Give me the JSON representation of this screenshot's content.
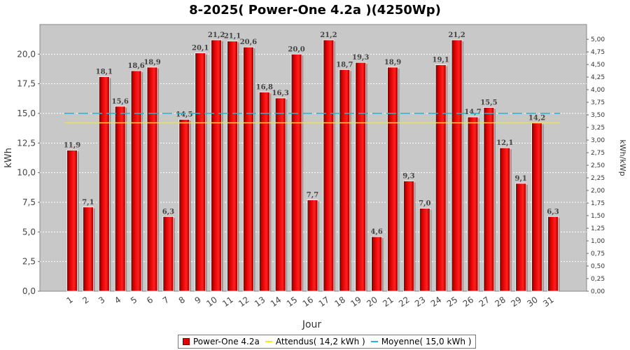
{
  "chart_data": {
    "type": "bar",
    "title": "8-2025( Power-One 4.2a )(4250Wp)",
    "xlabel": "Jour",
    "ylabel": "kWh",
    "ylabel_right": "kWh/kWp",
    "ylim": [
      0,
      22.5
    ],
    "ylim_right": [
      0,
      5.294
    ],
    "y_ticks": [
      "0,0",
      "2,5",
      "5,0",
      "7,5",
      "10,0",
      "12,5",
      "15,0",
      "17,5",
      "20,0"
    ],
    "y_ticks_right": [
      "0,00",
      "0,25",
      "0,50",
      "0,75",
      "1,00",
      "1,25",
      "1,50",
      "1,75",
      "2,00",
      "2,25",
      "2,50",
      "2,75",
      "3,00",
      "3,25",
      "3,50",
      "3,75",
      "4,00",
      "4,25",
      "4,50",
      "4,75",
      "5,00"
    ],
    "categories": [
      "1",
      "2",
      "3",
      "4",
      "5",
      "6",
      "7",
      "8",
      "9",
      "10",
      "11",
      "12",
      "13",
      "14",
      "15",
      "16",
      "17",
      "18",
      "19",
      "20",
      "21",
      "22",
      "23",
      "24",
      "25",
      "26",
      "27",
      "28",
      "29",
      "30",
      "31"
    ],
    "series": [
      {
        "name": "Power-One 4.2a",
        "color": "#e00000",
        "values": [
          11.9,
          7.1,
          18.1,
          15.6,
          18.6,
          18.9,
          6.3,
          14.5,
          20.1,
          21.2,
          21.1,
          20.6,
          16.8,
          16.3,
          20.0,
          7.7,
          21.2,
          18.7,
          19.3,
          4.6,
          18.9,
          9.3,
          7.0,
          19.1,
          21.2,
          14.7,
          15.5,
          12.1,
          9.1,
          14.2,
          6.3
        ],
        "labels": [
          "11,9",
          "7,1",
          "18,1",
          "15,6",
          "18,6",
          "18,9",
          "6,3",
          "14,5",
          "20,1",
          "21,2",
          "21,1",
          "20,6",
          "16,8",
          "16,3",
          "20,0",
          "7,7",
          "21,2",
          "18,7",
          "19,3",
          "4,6",
          "18,9",
          "9,3",
          "7,0",
          "19,1",
          "21,2",
          "14,7",
          "15,5",
          "12,1",
          "9,1",
          "14,2",
          "6,3"
        ]
      }
    ],
    "reference_lines": [
      {
        "name": "Attendus( 14,2 kWh )",
        "value": 14.2,
        "color": "#f0f000",
        "style": "solid"
      },
      {
        "name": "Moyenne( 15,0 kWh )",
        "value": 15.0,
        "color": "#1fb8d8",
        "style": "dashed"
      }
    ],
    "grid": true,
    "legend_position": "bottom"
  },
  "colors": {
    "plot_background": "#c8c8c8",
    "grid": "#ffffff",
    "bar": "#e00000"
  }
}
